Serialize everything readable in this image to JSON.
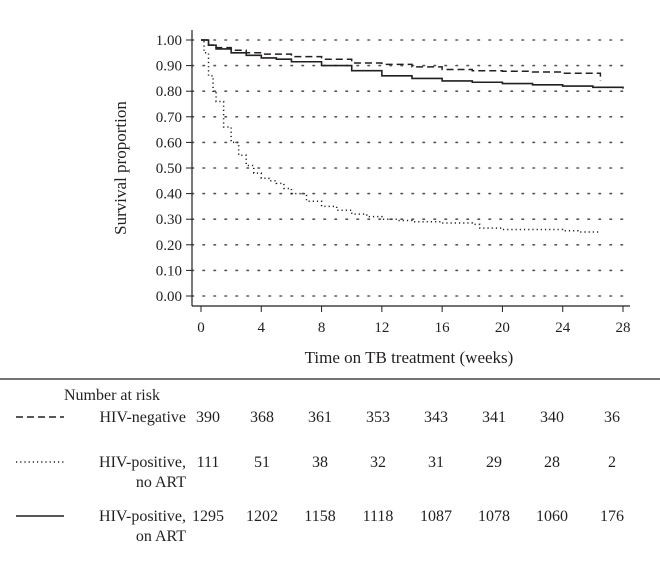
{
  "chart_data": {
    "type": "line",
    "title": "",
    "xlabel": "Time on TB treatment (weeks)",
    "ylabel": "Survival proportion",
    "xlim": [
      0,
      28
    ],
    "ylim": [
      0,
      1
    ],
    "x_ticks": [
      0,
      4,
      8,
      12,
      16,
      20,
      24,
      28
    ],
    "y_ticks": [
      0,
      0.1,
      0.2,
      0.3,
      0.4,
      0.5,
      0.6,
      0.7,
      0.8,
      0.9,
      1.0
    ],
    "y_tick_labels": [
      "0.00",
      "0.10",
      "0.20",
      "0.30",
      "0.40",
      "0.50",
      "0.60",
      "0.70",
      "0.80",
      "0.90",
      "1.00"
    ],
    "grid": "horizontal dotted",
    "series": [
      {
        "name": "HIV-negative",
        "style": "dashed",
        "points": [
          [
            0,
            1.0
          ],
          [
            0.5,
            0.98
          ],
          [
            1,
            0.97
          ],
          [
            2,
            0.96
          ],
          [
            3,
            0.95
          ],
          [
            4,
            0.945
          ],
          [
            6,
            0.935
          ],
          [
            8,
            0.925
          ],
          [
            10,
            0.91
          ],
          [
            12,
            0.905
          ],
          [
            14,
            0.895
          ],
          [
            16,
            0.885
          ],
          [
            18,
            0.88
          ],
          [
            20,
            0.878
          ],
          [
            22,
            0.875
          ],
          [
            24,
            0.87
          ],
          [
            26.5,
            0.865
          ],
          [
            26.5,
            0.84
          ]
        ]
      },
      {
        "name": "HIV-positive, no ART",
        "style": "dotted",
        "points": [
          [
            0,
            1.0
          ],
          [
            0.2,
            0.95
          ],
          [
            0.5,
            0.86
          ],
          [
            0.8,
            0.8
          ],
          [
            1,
            0.76
          ],
          [
            1.5,
            0.66
          ],
          [
            2,
            0.6
          ],
          [
            2.5,
            0.55
          ],
          [
            3,
            0.51
          ],
          [
            3.5,
            0.48
          ],
          [
            4,
            0.46
          ],
          [
            4.5,
            0.45
          ],
          [
            5,
            0.44
          ],
          [
            5.5,
            0.42
          ],
          [
            6,
            0.4
          ],
          [
            7,
            0.37
          ],
          [
            8,
            0.35
          ],
          [
            9,
            0.335
          ],
          [
            10,
            0.32
          ],
          [
            11,
            0.31
          ],
          [
            12,
            0.3
          ],
          [
            13,
            0.295
          ],
          [
            14,
            0.29
          ],
          [
            16,
            0.285
          ],
          [
            18,
            0.28
          ],
          [
            18.5,
            0.265
          ],
          [
            20,
            0.26
          ],
          [
            22,
            0.26
          ],
          [
            24,
            0.255
          ],
          [
            25,
            0.25
          ],
          [
            26.5,
            0.25
          ]
        ]
      },
      {
        "name": "HIV-positive, on ART",
        "style": "solid",
        "points": [
          [
            0,
            1.0
          ],
          [
            0.5,
            0.98
          ],
          [
            1,
            0.965
          ],
          [
            2,
            0.95
          ],
          [
            3,
            0.94
          ],
          [
            4,
            0.93
          ],
          [
            5,
            0.925
          ],
          [
            6,
            0.915
          ],
          [
            8,
            0.9
          ],
          [
            10,
            0.88
          ],
          [
            12,
            0.86
          ],
          [
            14,
            0.85
          ],
          [
            16,
            0.84
          ],
          [
            18,
            0.835
          ],
          [
            20,
            0.83
          ],
          [
            22,
            0.825
          ],
          [
            24,
            0.82
          ],
          [
            26,
            0.815
          ],
          [
            28,
            0.81
          ]
        ]
      }
    ]
  },
  "risk_table": {
    "heading": "Number at risk",
    "rows": [
      {
        "label_lines": [
          "HIV-negative"
        ],
        "style": "dashed",
        "values": [
          "390",
          "368",
          "361",
          "353",
          "343",
          "341",
          "340",
          "36"
        ]
      },
      {
        "label_lines": [
          "HIV-positive,",
          "no ART"
        ],
        "style": "dotted",
        "values": [
          "111",
          "51",
          "38",
          "32",
          "31",
          "29",
          "28",
          "2"
        ]
      },
      {
        "label_lines": [
          "HIV-positive,",
          "on ART"
        ],
        "style": "solid",
        "values": [
          "1295",
          "1202",
          "1158",
          "1118",
          "1087",
          "1078",
          "1060",
          "176"
        ]
      }
    ]
  }
}
